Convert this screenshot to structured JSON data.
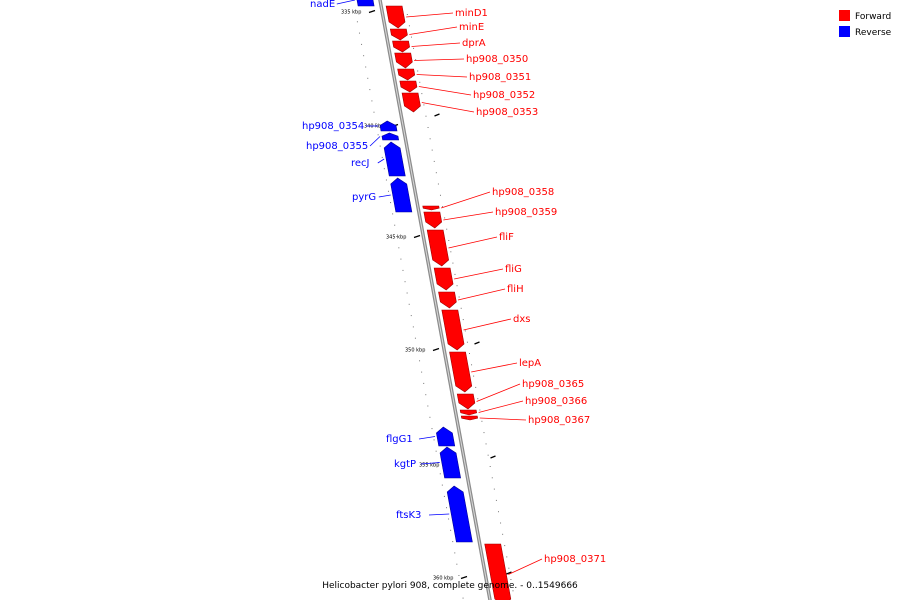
{
  "colors": {
    "forward": "#ff0000",
    "reverse": "#0000ff",
    "backbone": "#8c8c8c",
    "tick": "#000000"
  },
  "legend": [
    {
      "label": "Forward",
      "strand": "forward"
    },
    {
      "label": "Reverse",
      "strand": "reverse"
    }
  ],
  "caption": "Helicobacter pylori 908, complete genome. - 0..1549666",
  "ticks": [
    "335 kbp",
    "340 kbp",
    "345 kbp",
    "350 kbp",
    "355 kbp",
    "360 kbp"
  ],
  "genes": [
    {
      "name": "nadE",
      "strand": "reverse"
    },
    {
      "name": "minD1",
      "strand": "forward"
    },
    {
      "name": "minE",
      "strand": "forward"
    },
    {
      "name": "dprA",
      "strand": "forward"
    },
    {
      "name": "hp908_0350",
      "strand": "forward"
    },
    {
      "name": "hp908_0351",
      "strand": "forward"
    },
    {
      "name": "hp908_0352",
      "strand": "forward"
    },
    {
      "name": "hp908_0353",
      "strand": "forward"
    },
    {
      "name": "hp908_0354",
      "strand": "reverse"
    },
    {
      "name": "hp908_0355",
      "strand": "reverse"
    },
    {
      "name": "recJ",
      "strand": "reverse"
    },
    {
      "name": "pyrG",
      "strand": "reverse"
    },
    {
      "name": "hp908_0358",
      "strand": "forward"
    },
    {
      "name": "hp908_0359",
      "strand": "forward"
    },
    {
      "name": "fliF",
      "strand": "forward"
    },
    {
      "name": "fliG",
      "strand": "forward"
    },
    {
      "name": "fliH",
      "strand": "forward"
    },
    {
      "name": "dxs",
      "strand": "forward"
    },
    {
      "name": "lepA",
      "strand": "forward"
    },
    {
      "name": "hp908_0365",
      "strand": "forward"
    },
    {
      "name": "hp908_0366",
      "strand": "forward"
    },
    {
      "name": "hp908_0367",
      "strand": "forward"
    },
    {
      "name": "flgG1",
      "strand": "reverse"
    },
    {
      "name": "kgtP",
      "strand": "reverse"
    },
    {
      "name": "ftsK3",
      "strand": "reverse"
    },
    {
      "name": "hp908_0371",
      "strand": "forward"
    }
  ]
}
